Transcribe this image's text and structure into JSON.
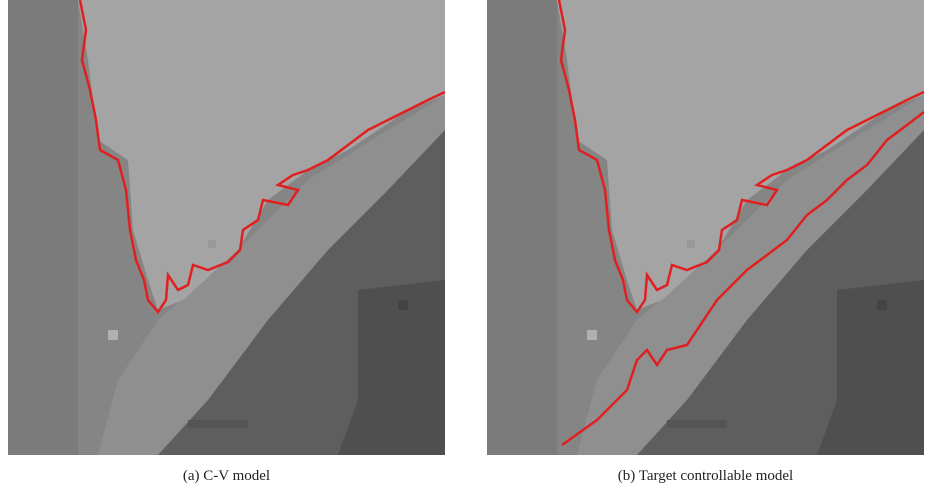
{
  "figure": {
    "panels": [
      {
        "caption": "(a)  C-V model"
      },
      {
        "caption": "(b)  Target controllable model"
      }
    ]
  }
}
